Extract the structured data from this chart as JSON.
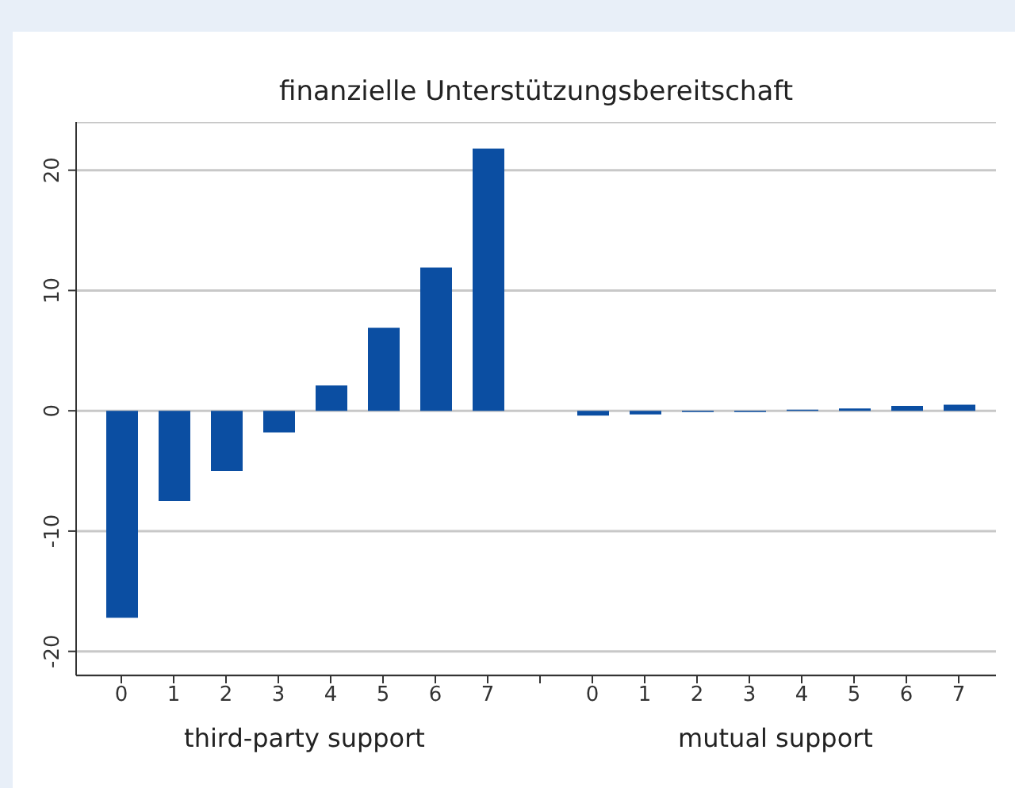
{
  "chart_data": {
    "type": "bar",
    "title": "finanzielle Unterstützungsbereitschaft",
    "categories": [
      "0",
      "1",
      "2",
      "3",
      "4",
      "5",
      "6",
      "7",
      null,
      "0",
      "1",
      "2",
      "3",
      "4",
      "5",
      "6",
      "7"
    ],
    "values": [
      -17.2,
      -7.5,
      -5.0,
      -1.8,
      2.1,
      6.9,
      11.9,
      21.8,
      null,
      -0.4,
      -0.3,
      -0.1,
      -0.1,
      0.1,
      0.2,
      0.4,
      0.5
    ],
    "color": "#0b4ea2",
    "ylim": [
      -22,
      24
    ],
    "yticks": [
      -20,
      -10,
      0,
      10,
      20
    ],
    "grid": "y",
    "annotations": [
      "third-party support",
      "mutual support"
    ]
  }
}
